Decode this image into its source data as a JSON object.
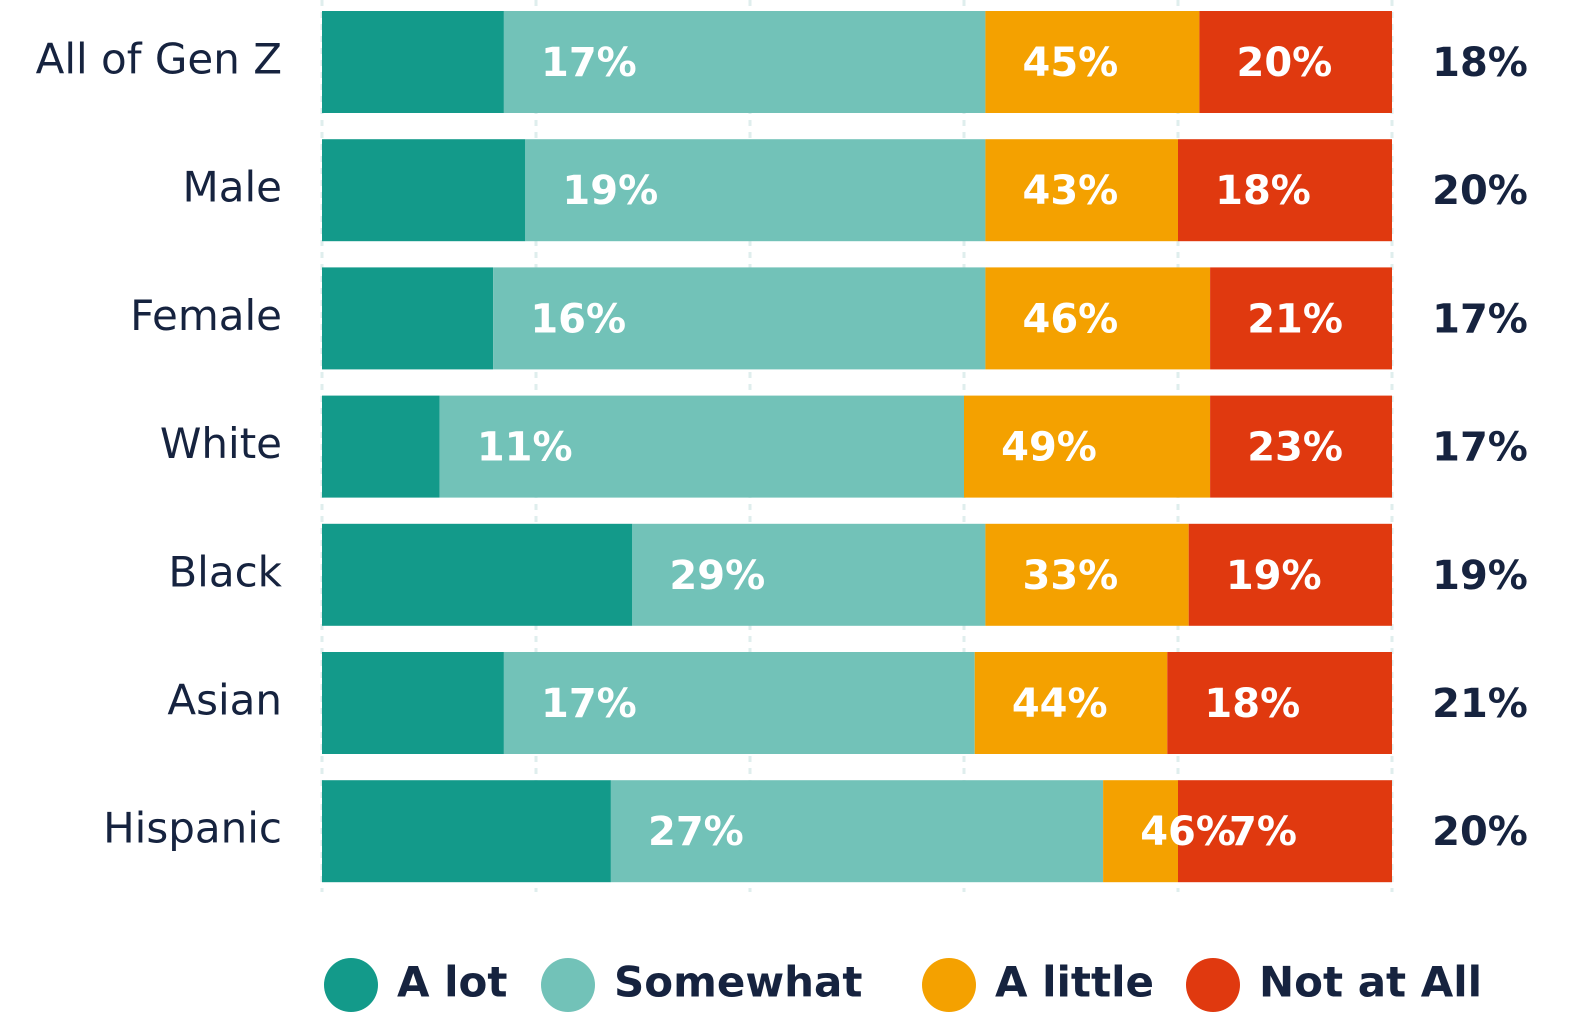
{
  "chart_data": {
    "type": "stacked-barh",
    "categories": [
      "All of Gen Z",
      "Male",
      "Female",
      "White",
      "Black",
      "Asian",
      "Hispanic"
    ],
    "series": [
      {
        "name": "A lot",
        "color": "#139a8a",
        "values": [
          17,
          19,
          16,
          11,
          29,
          17,
          27
        ],
        "value_labels": [
          "17%",
          "19%",
          "16%",
          "11%",
          "29%",
          "17%",
          "27%"
        ]
      },
      {
        "name": "Somewhat",
        "color": "#72c2b8",
        "values": [
          45,
          43,
          46,
          49,
          33,
          44,
          46
        ],
        "value_labels": [
          "45%",
          "43%",
          "46%",
          "49%",
          "33%",
          "44%",
          "46%"
        ]
      },
      {
        "name": "A little",
        "color": "#f4a100",
        "values": [
          20,
          18,
          21,
          23,
          19,
          18,
          7
        ],
        "value_labels": [
          "20%",
          "18%",
          "21%",
          "23%",
          "19%",
          "18%",
          "7%"
        ]
      },
      {
        "name": "Not at All",
        "color": "#e0390f",
        "values": [
          18,
          20,
          17,
          17,
          19,
          21,
          20
        ],
        "value_labels": [
          "18%",
          "20%",
          "17%",
          "17%",
          "19%",
          "21%",
          "20%"
        ]
      }
    ],
    "xlim": [
      0,
      100
    ],
    "xticks": [
      0,
      20,
      40,
      60,
      80,
      100
    ],
    "grid": true
  }
}
